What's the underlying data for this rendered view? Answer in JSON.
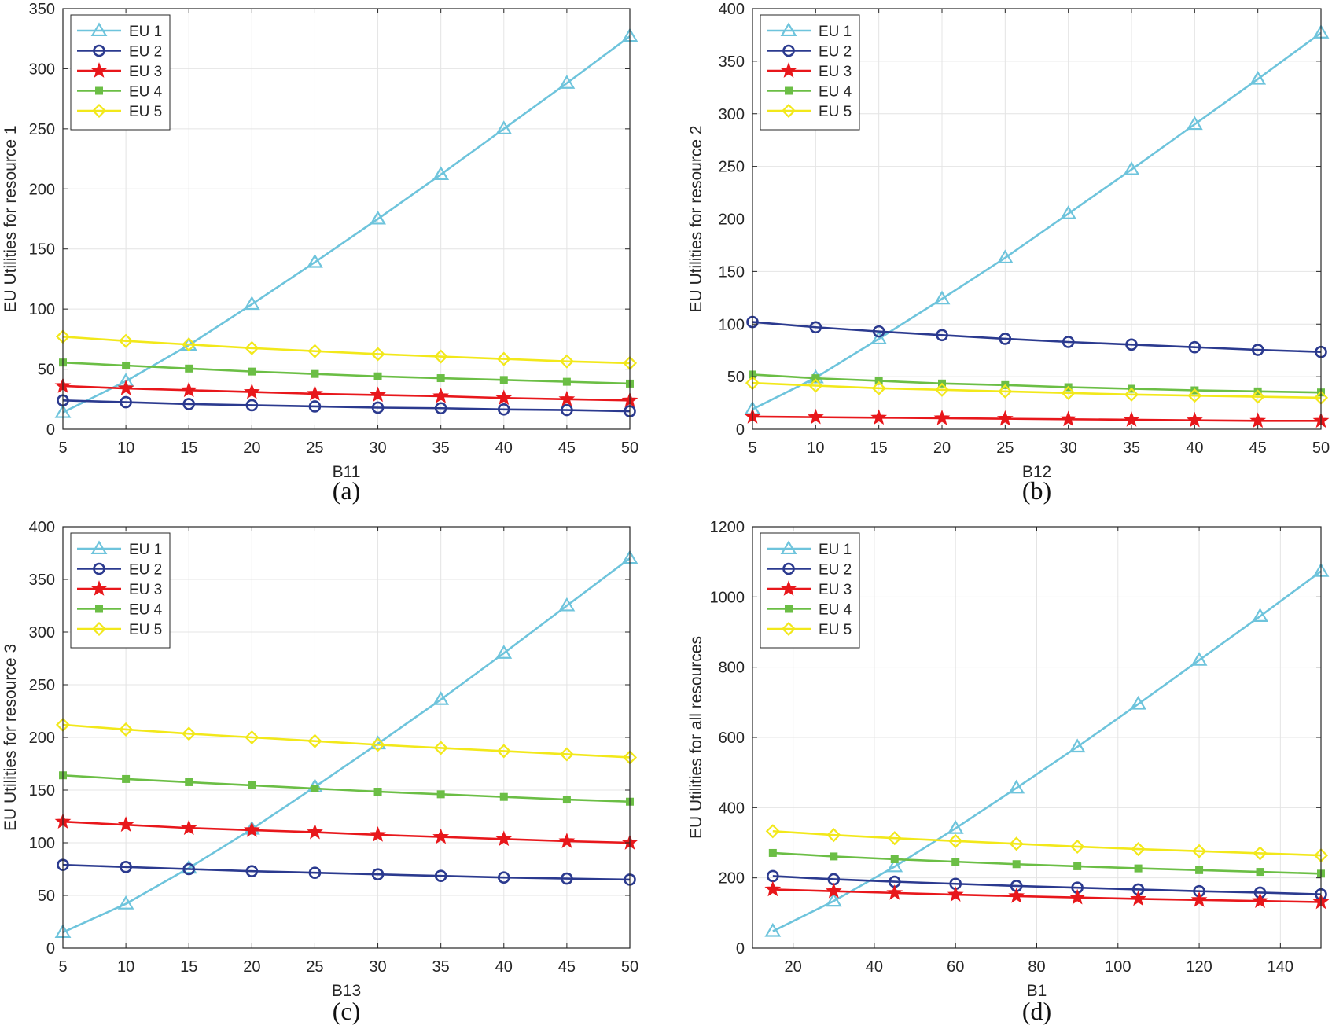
{
  "legend_entries": [
    "EU 1",
    "EU 2",
    "EU 3",
    "EU 4",
    "EU 5"
  ],
  "series_colors": {
    "EU 1": "#6EC4DC",
    "EU 2": "#2B3A8F",
    "EU 3": "#E8171B",
    "EU 4": "#6BBE45",
    "EU 5": "#F2E81A"
  },
  "series_markers": {
    "EU 1": "triangle",
    "EU 2": "circle",
    "EU 3": "star",
    "EU 4": "square",
    "EU 5": "diamond"
  },
  "chart_data": [
    {
      "type": "line",
      "caption": "(a)",
      "xlabel": "B11",
      "ylabel": "EU Utilities for resource 1",
      "xlim": [
        5,
        50
      ],
      "ylim": [
        0,
        350
      ],
      "xticks": [
        5,
        10,
        15,
        20,
        25,
        30,
        35,
        40,
        45,
        50
      ],
      "yticks": [
        0,
        50,
        100,
        150,
        200,
        250,
        300,
        350
      ],
      "grid": true,
      "legend": "top-left",
      "x": [
        5,
        10,
        15,
        20,
        25,
        30,
        35,
        40,
        45,
        50
      ],
      "series": [
        {
          "name": "EU 1",
          "values": [
            14,
            40,
            70,
            104,
            139,
            175,
            212,
            250,
            288,
            327
          ]
        },
        {
          "name": "EU 2",
          "values": [
            24,
            22.5,
            21,
            20,
            19,
            18,
            17.5,
            16.5,
            16,
            15
          ]
        },
        {
          "name": "EU 3",
          "values": [
            36,
            34,
            32.5,
            31,
            29.5,
            28.5,
            27.5,
            26,
            25,
            24
          ]
        },
        {
          "name": "EU 4",
          "values": [
            55.5,
            53,
            50.5,
            48,
            46,
            44,
            42.5,
            41,
            39.5,
            38
          ]
        },
        {
          "name": "EU 5",
          "values": [
            77,
            73.5,
            70.5,
            67.5,
            65,
            62.5,
            60.5,
            58.5,
            56.5,
            55
          ]
        }
      ]
    },
    {
      "type": "line",
      "caption": "(b)",
      "xlabel": "B12",
      "ylabel": "EU Utilities for resource 2",
      "xlim": [
        5,
        50
      ],
      "ylim": [
        0,
        400
      ],
      "xticks": [
        5,
        10,
        15,
        20,
        25,
        30,
        35,
        40,
        45,
        50
      ],
      "yticks": [
        0,
        50,
        100,
        150,
        200,
        250,
        300,
        350,
        400
      ],
      "grid": true,
      "legend": "top-left",
      "x": [
        5,
        10,
        15,
        20,
        25,
        30,
        35,
        40,
        45,
        50
      ],
      "series": [
        {
          "name": "EU 1",
          "values": [
            19,
            49,
            86,
            124,
            163,
            205,
            247,
            290,
            333,
            377
          ]
        },
        {
          "name": "EU 2",
          "values": [
            102,
            97,
            93,
            89.5,
            86,
            83,
            80.5,
            78,
            75.5,
            73.5
          ]
        },
        {
          "name": "EU 3",
          "values": [
            12,
            11.5,
            11,
            10.5,
            10,
            9.5,
            9,
            8.5,
            8,
            8
          ]
        },
        {
          "name": "EU 4",
          "values": [
            52,
            48.5,
            46,
            43.5,
            42,
            40,
            38.5,
            37,
            36,
            35
          ]
        },
        {
          "name": "EU 5",
          "values": [
            44,
            41.5,
            39,
            37.5,
            36,
            34.5,
            33,
            32,
            31,
            30
          ]
        }
      ]
    },
    {
      "type": "line",
      "caption": "(c)",
      "xlabel": "B13",
      "ylabel": "EU Utilities for resource 3",
      "xlim": [
        5,
        50
      ],
      "ylim": [
        0,
        400
      ],
      "xticks": [
        5,
        10,
        15,
        20,
        25,
        30,
        35,
        40,
        45,
        50
      ],
      "yticks": [
        0,
        50,
        100,
        150,
        200,
        250,
        300,
        350,
        400
      ],
      "grid": true,
      "legend": "top-left",
      "x": [
        5,
        10,
        15,
        20,
        25,
        30,
        35,
        40,
        45,
        50
      ],
      "series": [
        {
          "name": "EU 1",
          "values": [
            15,
            42,
            76,
            113,
            153,
            194,
            236,
            280,
            325,
            370
          ]
        },
        {
          "name": "EU 2",
          "values": [
            79,
            77,
            75,
            73,
            71.5,
            70,
            68.5,
            67,
            66,
            65
          ]
        },
        {
          "name": "EU 3",
          "values": [
            120,
            117,
            114,
            112,
            110,
            107.5,
            105.5,
            103.5,
            101.5,
            100
          ]
        },
        {
          "name": "EU 4",
          "values": [
            164,
            160.5,
            157.5,
            154.5,
            151.5,
            148.5,
            146,
            143.5,
            141,
            139
          ]
        },
        {
          "name": "EU 5",
          "values": [
            212,
            207.5,
            203.5,
            200,
            196.5,
            193,
            190,
            187,
            184,
            181
          ]
        }
      ]
    },
    {
      "type": "line",
      "caption": "(d)",
      "xlabel": "B1",
      "ylabel": "EU Utilities for all resources",
      "xlim": [
        10,
        150
      ],
      "ylim": [
        0,
        1200
      ],
      "xticks": [
        20,
        40,
        60,
        80,
        100,
        120,
        140
      ],
      "yticks": [
        0,
        200,
        400,
        600,
        800,
        1000,
        1200
      ],
      "grid": true,
      "legend": "top-left",
      "x": [
        15,
        30,
        45,
        60,
        75,
        90,
        105,
        120,
        135,
        150
      ],
      "series": [
        {
          "name": "EU 1",
          "values": [
            48,
            134,
            232,
            341,
            456,
            573,
            695,
            820,
            945,
            1073
          ]
        },
        {
          "name": "EU 2",
          "values": [
            205,
            196,
            189,
            183,
            177,
            172,
            167,
            162,
            158,
            153
          ]
        },
        {
          "name": "EU 3",
          "values": [
            167,
            162,
            157,
            152,
            148,
            144,
            140,
            137,
            134,
            131
          ]
        },
        {
          "name": "EU 4",
          "values": [
            271,
            261,
            253,
            246,
            239,
            233,
            227,
            222,
            217,
            212
          ]
        },
        {
          "name": "EU 5",
          "values": [
            333,
            322,
            313,
            305,
            297,
            289,
            282,
            276,
            270,
            264
          ]
        }
      ]
    }
  ]
}
